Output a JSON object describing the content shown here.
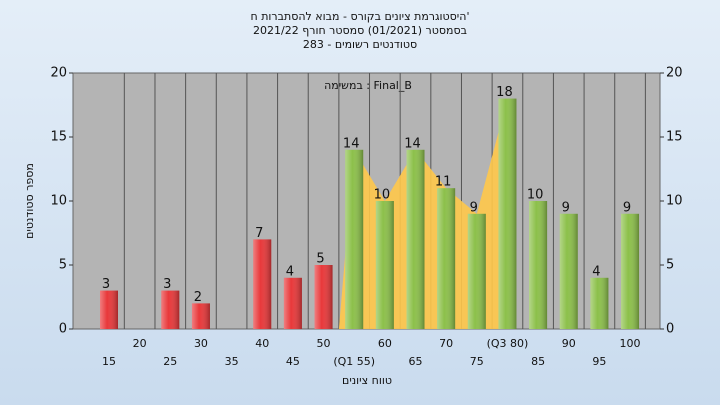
{
  "chart_data": {
    "type": "bar",
    "title": "היסטוגרמת ציונים בקורס - מבוא להסתברות ח'",
    "subtitle": "בסמסטר (01/2021) סמסטר חורף 2021/22",
    "subtitle2": "סטודנטים רשומים - 283",
    "annotation": "במשימה : Final_B",
    "y_label": "מספר סטודנטים",
    "x_label": "טווח ציונים",
    "categories": [
      "15",
      "20",
      "25",
      "30",
      "35",
      "40",
      "45",
      "50",
      "(Q1 55)",
      "60",
      "65",
      "70",
      "75",
      "(Q3 80)",
      "85",
      "90",
      "95",
      "100"
    ],
    "values": [
      3,
      0,
      3,
      2,
      0,
      7,
      4,
      5,
      14,
      10,
      14,
      11,
      9,
      18,
      10,
      9,
      4,
      9
    ],
    "bar_colors": [
      "#e8383a",
      "#e8383a",
      "#e8383a",
      "#e8383a",
      "#e8383a",
      "#e8383a",
      "#e8383a",
      "#e8383a",
      "#8cc04a",
      "#8cc04a",
      "#8cc04a",
      "#8cc04a",
      "#8cc04a",
      "#8cc04a",
      "#8cc04a",
      "#8cc04a",
      "#8cc04a",
      "#8cc04a"
    ],
    "band_color": "#ffc84a",
    "ylim": [
      0,
      20
    ],
    "yticks": [
      0,
      5,
      10,
      15,
      20
    ],
    "grid": true
  }
}
